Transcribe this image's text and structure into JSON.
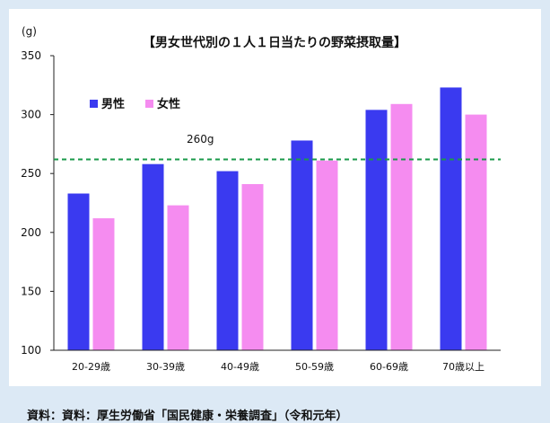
{
  "chart_data": {
    "type": "bar",
    "title": "【男女世代別の１人１日当たりの野菜摂取量】",
    "unit": "(g)",
    "categories": [
      "20-29歳",
      "30-39歳",
      "40-49歳",
      "50-59歳",
      "60-69歳",
      "70歳以上"
    ],
    "series": [
      {
        "name": "男性",
        "values": [
          233,
          258,
          252,
          278,
          304,
          323
        ],
        "color": "#3a3af0"
      },
      {
        "name": "女性",
        "values": [
          212,
          223,
          241,
          261,
          309,
          300
        ],
        "color": "#f58cf0"
      }
    ],
    "ylim": [
      100,
      350
    ],
    "yticks": [
      100,
      150,
      200,
      250,
      300,
      350
    ],
    "reference": {
      "value": 262,
      "label": "260g",
      "color": "#1a9a4a"
    },
    "legend_position": "top-left",
    "grid": false
  },
  "source": "資料：資料：厚生労働省「国民健康・栄養調査」（令和元年）"
}
